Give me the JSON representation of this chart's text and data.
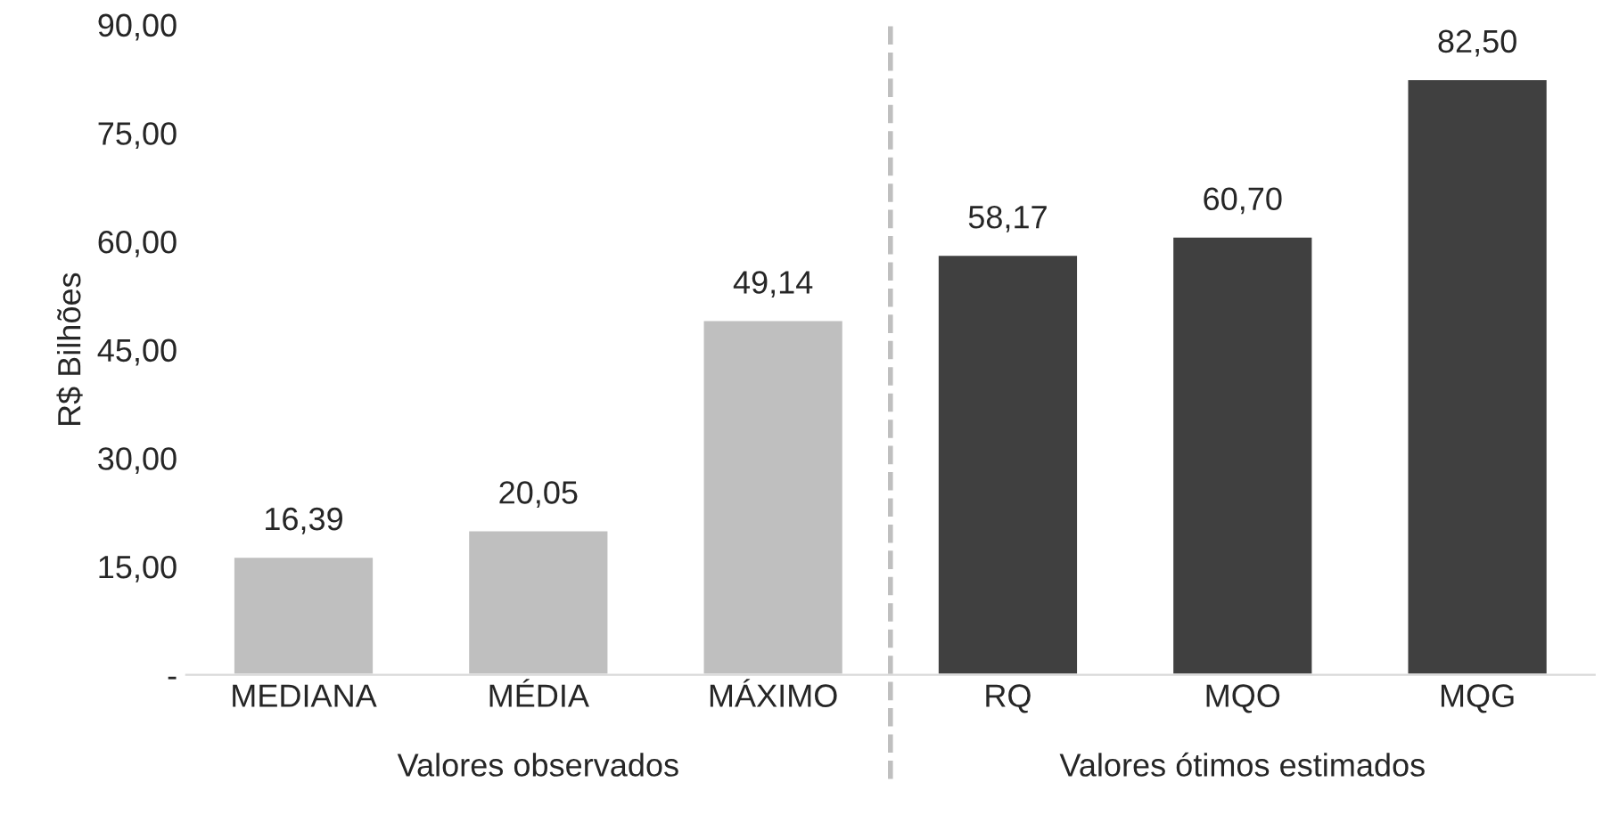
{
  "chart_data": {
    "type": "bar",
    "ylabel": "R$ Bilhões",
    "categories": [
      "MEDIANA",
      "MÉDIA",
      "MÁXIMO",
      "RQ",
      "MQO",
      "MQG"
    ],
    "values": [
      16.39,
      20.05,
      49.14,
      58.17,
      60.7,
      82.5
    ],
    "colors": [
      "#bfbfbf",
      "#bfbfbf",
      "#bfbfbf",
      "#404040",
      "#404040",
      "#404040"
    ],
    "value_labels": [
      "16,39",
      "20,05",
      "49,14",
      "58,17",
      "60,70",
      "82,50"
    ],
    "ylim": [
      0,
      90
    ],
    "yticks": [
      {
        "value": 0,
        "label": "-"
      },
      {
        "value": 15,
        "label": "15,00"
      },
      {
        "value": 30,
        "label": "30,00"
      },
      {
        "value": 45,
        "label": "45,00"
      },
      {
        "value": 60,
        "label": "60,00"
      },
      {
        "value": 75,
        "label": "75,00"
      },
      {
        "value": 90,
        "label": "90,00"
      }
    ],
    "annotations": [
      "Valores observados",
      "Valores ótimos estimados"
    ],
    "grid": false,
    "legend": false
  }
}
